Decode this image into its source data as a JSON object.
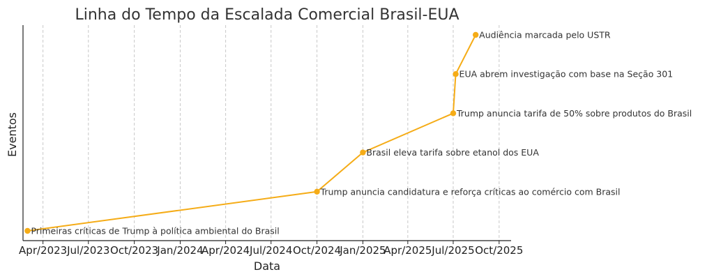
{
  "chart_data": {
    "type": "line",
    "title": "Linha do Tempo da Escalada Comercial Brasil-EUA",
    "xlabel": "Data",
    "ylabel": "Eventos",
    "x_ticks": [
      "Apr/2023",
      "Jul/2023",
      "Oct/2023",
      "Jan/2024",
      "Apr/2024",
      "Jul/2024",
      "Oct/2024",
      "Jan/2025",
      "Apr/2025",
      "Jul/2025",
      "Oct/2025"
    ],
    "tick_dates": [
      "2023-04-01",
      "2023-07-01",
      "2023-10-01",
      "2024-01-01",
      "2024-04-01",
      "2024-07-01",
      "2024-10-01",
      "2025-01-01",
      "2025-04-01",
      "2025-07-01",
      "2025-10-01"
    ],
    "xlim": [
      "2023-02-20",
      "2025-10-25"
    ],
    "grid": "vertical",
    "color": "#f5ac17",
    "points": [
      {
        "date": "2023-03-01",
        "level": 0,
        "label": "Primeiras críticas de Trump à política ambiental do Brasil"
      },
      {
        "date": "2024-10-01",
        "level": 1,
        "label": "Trump anuncia candidatura e reforça críticas ao comércio com Brasil"
      },
      {
        "date": "2025-01-01",
        "level": 2,
        "label": "Brasil eleva tarifa sobre etanol dos EUA"
      },
      {
        "date": "2025-07-01",
        "level": 3,
        "label": "Trump anuncia tarifa de 50% sobre produtos do Brasil"
      },
      {
        "date": "2025-07-06",
        "level": 4,
        "label": "EUA abrem investigação com base na Seção 301"
      },
      {
        "date": "2025-08-15",
        "level": 5,
        "label": "Audiência marcada pelo USTR"
      }
    ]
  }
}
